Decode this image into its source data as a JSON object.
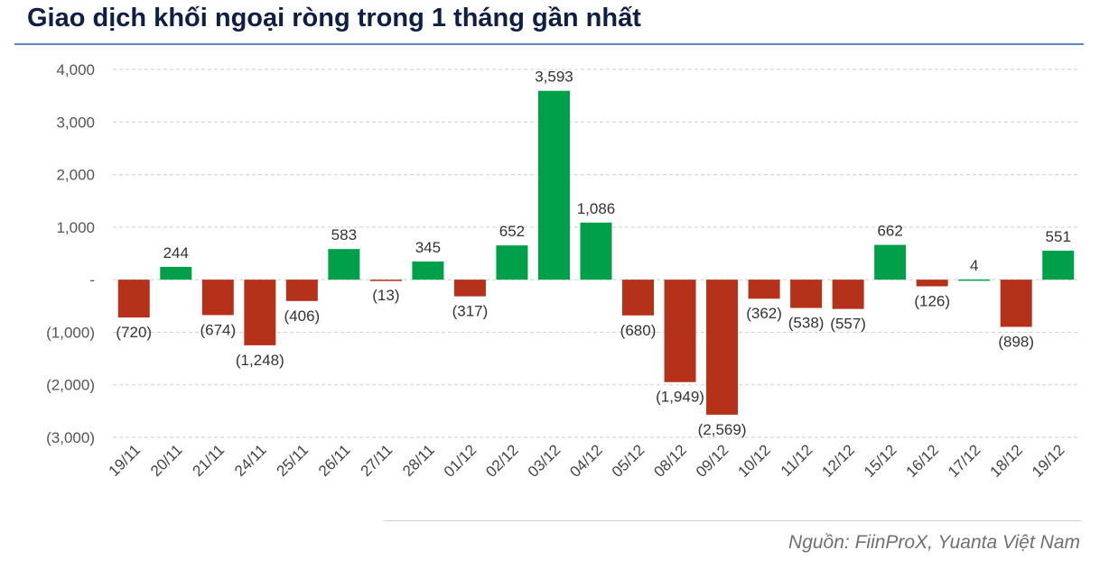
{
  "chart_data": {
    "type": "bar",
    "title": "Giao dịch khối ngoại ròng trong 1 tháng gần nhất",
    "categories": [
      "19/11",
      "20/11",
      "21/11",
      "24/11",
      "25/11",
      "26/11",
      "27/11",
      "28/11",
      "01/12",
      "02/12",
      "03/12",
      "04/12",
      "05/12",
      "08/12",
      "09/12",
      "10/12",
      "11/12",
      "12/12",
      "15/12",
      "16/12",
      "17/12",
      "18/12",
      "19/12"
    ],
    "values": [
      -720,
      244,
      -674,
      -1248,
      -406,
      583,
      -13,
      345,
      -317,
      652,
      3593,
      1086,
      -680,
      -1949,
      -2569,
      -362,
      -538,
      -557,
      662,
      -126,
      4,
      -898,
      551
    ],
    "ylim": [
      -3000,
      4000
    ],
    "yticks": [
      4000,
      3000,
      2000,
      1000,
      0,
      -1000,
      -2000,
      -3000
    ],
    "ytick_labels": [
      "4,000",
      "3,000",
      "2,000",
      "1,000",
      "-",
      "(1,000)",
      "(2,000)",
      "(3,000)"
    ],
    "grid": true,
    "colors": {
      "positive": "#00a04a",
      "negative": "#b5311a"
    }
  },
  "source": "Nguồn: FiinProX, Yuanta Việt Nam"
}
